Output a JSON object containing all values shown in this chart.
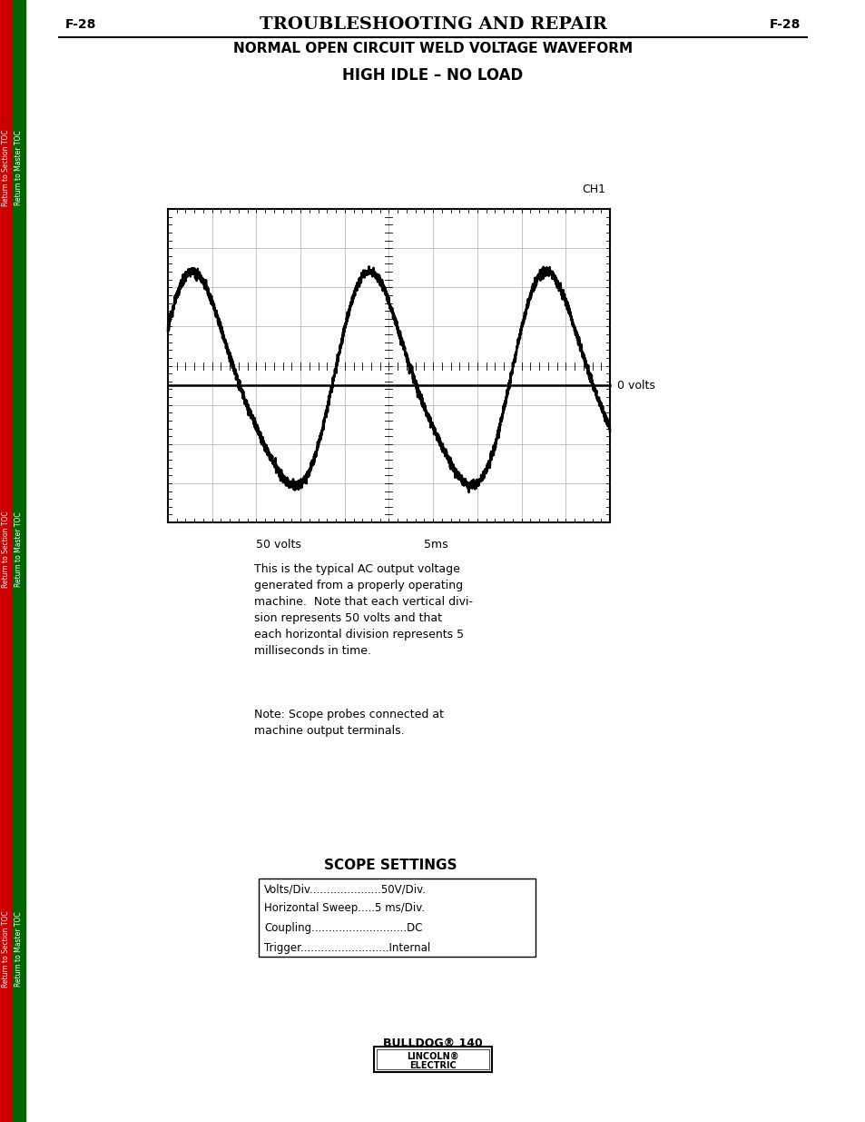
{
  "page_label_left": "F-28",
  "page_label_right": "F-28",
  "title_main": "TROUBLESHOOTING AND REPAIR",
  "title_sub": "NORMAL OPEN CIRCUIT WELD VOLTAGE WAVEFORM",
  "section_title": "HIGH IDLE – NO LOAD",
  "ch_label": "CH1",
  "zero_volts_label": "0 volts",
  "xscale_label": "50 volts",
  "tscale_label": "5ms",
  "desc_text": "This is the typical AC output voltage\ngenerated from a properly operating\nmachine.  Note that each vertical divi-\nsion represents 50 volts and that\neach horizontal division represents 5\nmilliseconds in time.",
  "note_text": "Note: Scope probes connected at\nmachine output terminals.",
  "scope_title": "SCOPE SETTINGS",
  "scope_settings": [
    "Volts/Div.....................50V/Div.",
    "Horizontal Sweep.....5 ms/Div.",
    "Coupling............................DC",
    "Trigger..........................Internal"
  ],
  "footer_text": "BULLDOG® 140",
  "bg_color": "#ffffff",
  "text_color": "#000000",
  "grid_color": "#bbbbbb",
  "waveform_color": "#000000",
  "sidebar_red": "#cc0000",
  "sidebar_green": "#006600"
}
